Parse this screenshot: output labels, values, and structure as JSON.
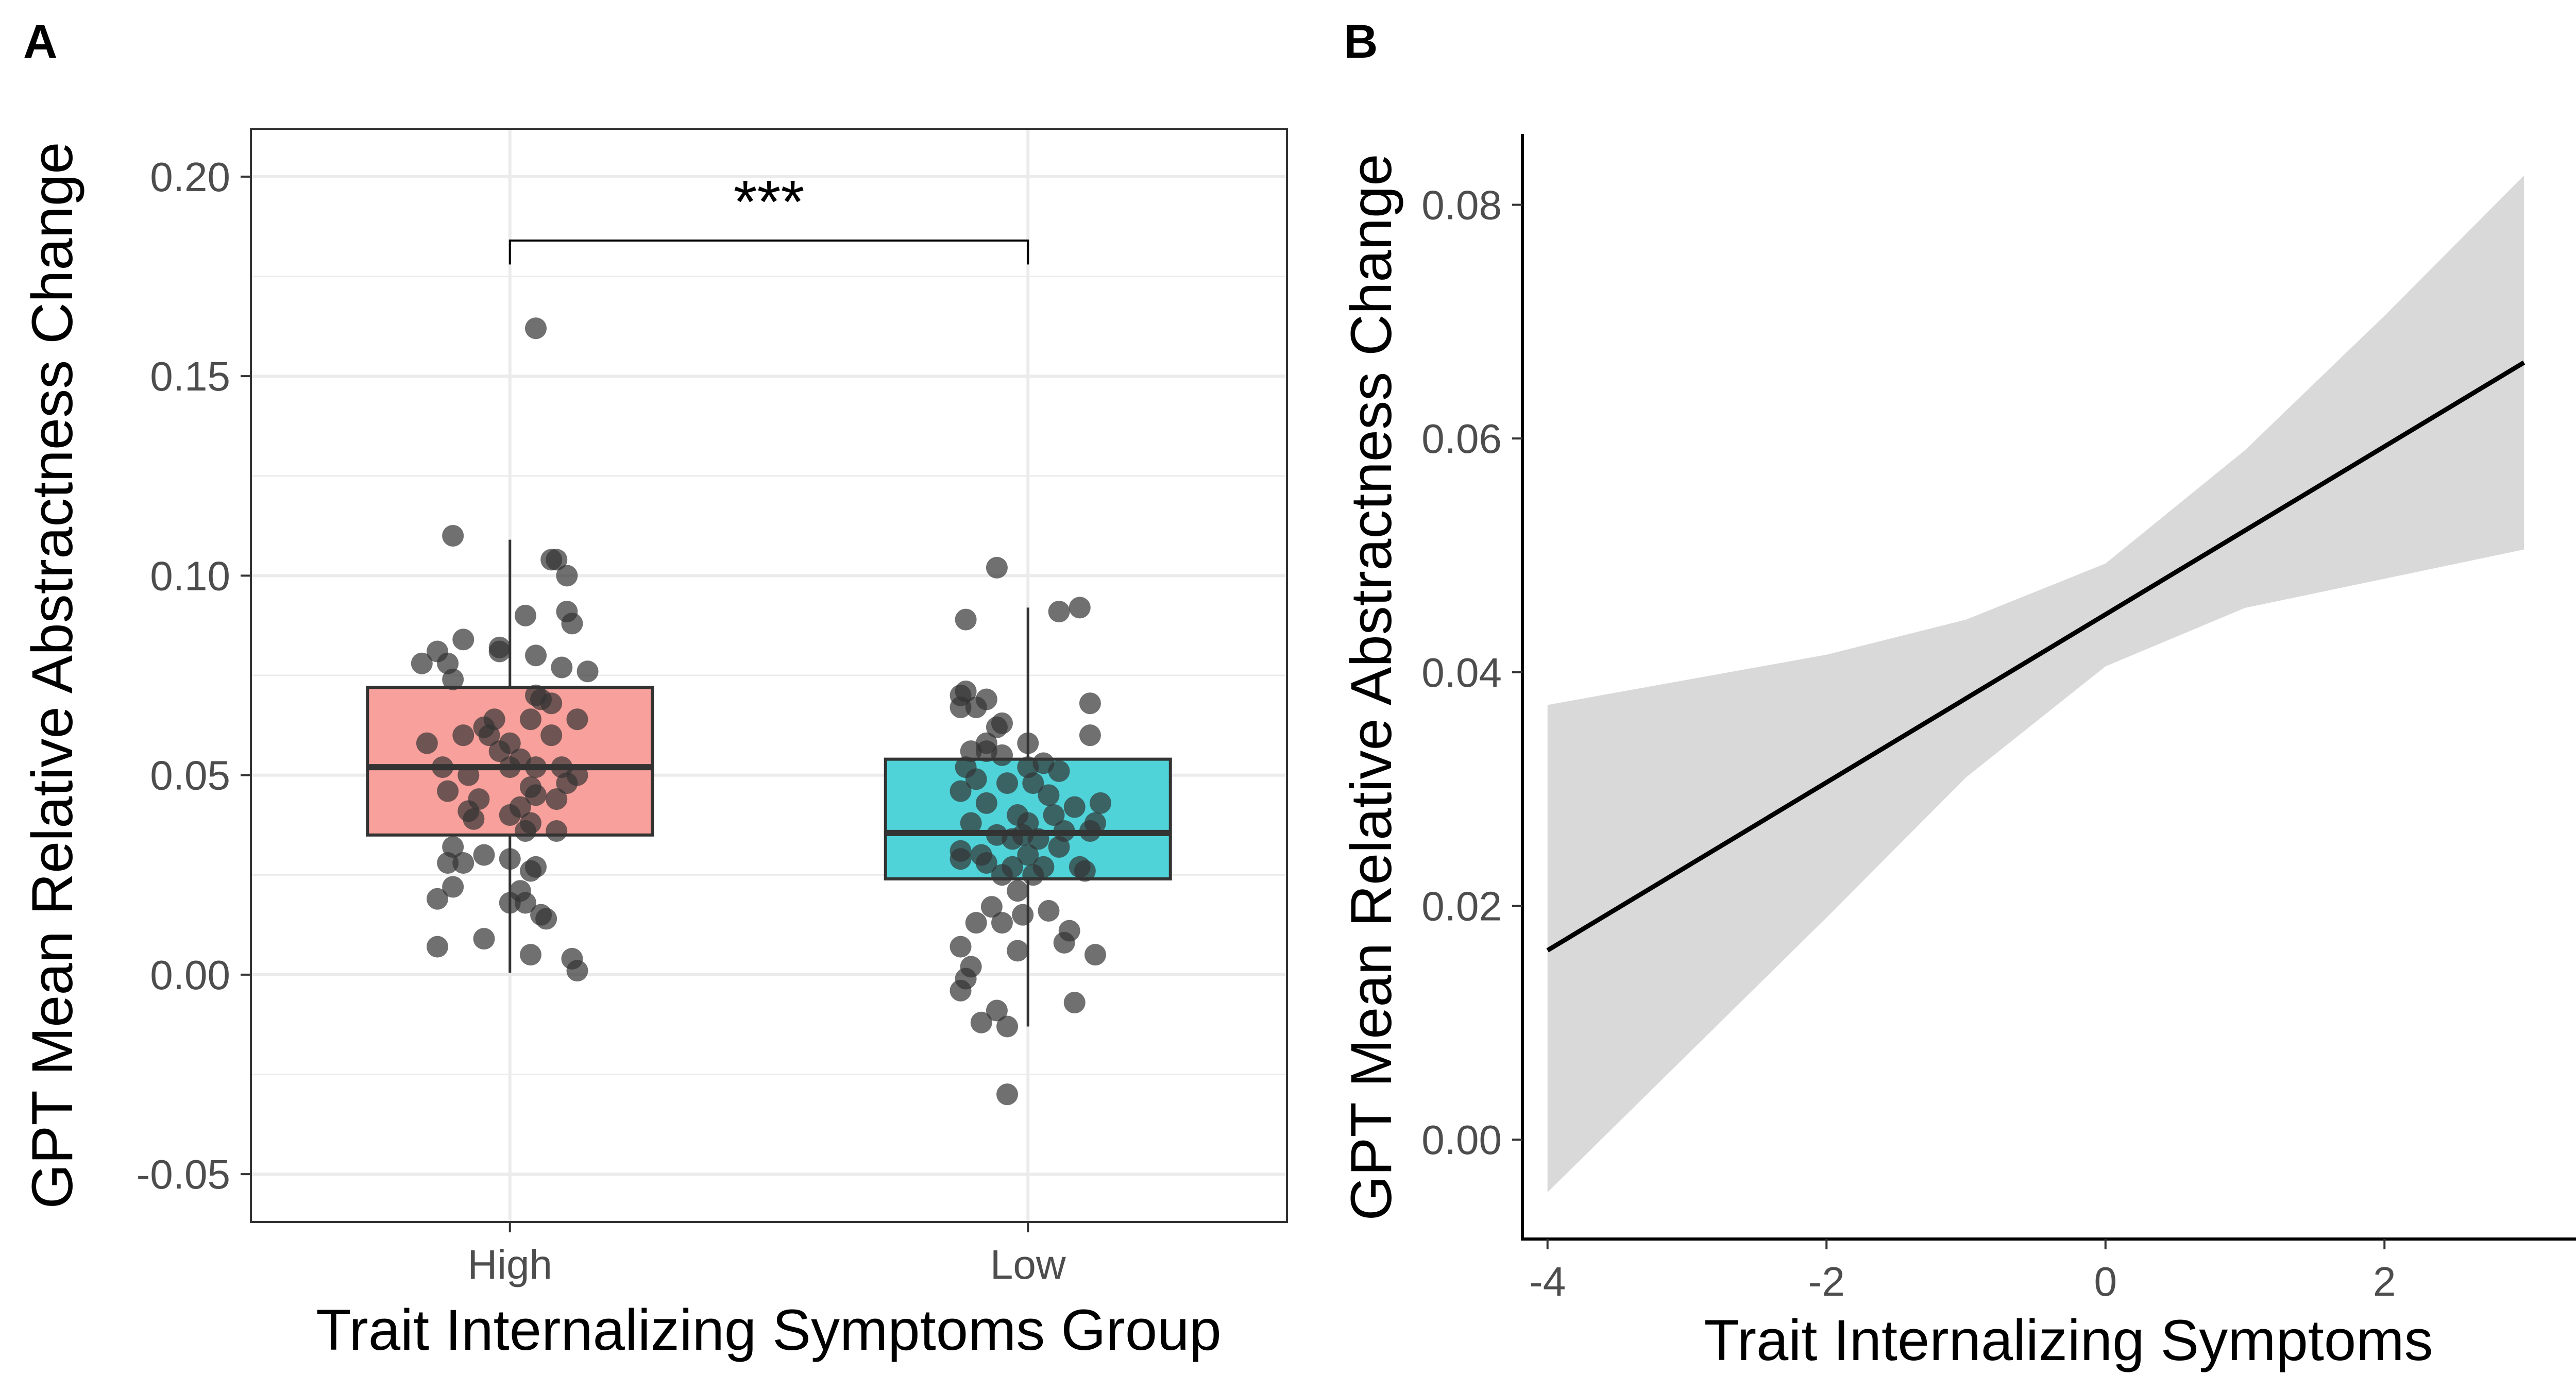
{
  "panels": {
    "a_label": "A",
    "b_label": "B"
  },
  "colors": {
    "high_fill": "#F8A09B",
    "low_fill": "#4FD3D8",
    "point": "#333333",
    "ribbon": "#D9D9D9",
    "grid": "#EBEBEB",
    "line": "#000000"
  },
  "chart_data": [
    {
      "type": "box",
      "xlabel": "Trait Internalizing Symptoms Group",
      "ylabel": "GPT Mean Relative Abstractness Change",
      "ylim": [
        -0.062,
        0.212
      ],
      "yticks": [
        -0.05,
        0.0,
        0.05,
        0.1,
        0.15,
        0.2
      ],
      "ytick_labels": [
        "-0.05",
        "0.00",
        "0.05",
        "0.10",
        "0.15",
        "0.20"
      ],
      "grid": true,
      "categories": [
        "High",
        "Low"
      ],
      "boxes": [
        {
          "category": "High",
          "fill": "#F8A09B",
          "q1": 0.035,
          "median": 0.052,
          "q3": 0.072,
          "whisker_low": 0.0005,
          "whisker_high": 0.109
        },
        {
          "category": "Low",
          "fill": "#4FD3D8",
          "q1": 0.024,
          "median": 0.0355,
          "q3": 0.054,
          "whisker_low": -0.013,
          "whisker_high": 0.092
        }
      ],
      "outliers": [
        {
          "category": "High",
          "value": 0.162
        }
      ],
      "annotation": {
        "text": "***",
        "from": "High",
        "to": "Low",
        "y": 0.184
      },
      "points": {
        "High": [
          {
            "dx": -0.11,
            "y": 0.11
          },
          {
            "dx": 0.08,
            "y": 0.104
          },
          {
            "dx": 0.09,
            "y": 0.104
          },
          {
            "dx": 0.11,
            "y": 0.1
          },
          {
            "dx": 0.11,
            "y": 0.091
          },
          {
            "dx": 0.03,
            "y": 0.09
          },
          {
            "dx": 0.12,
            "y": 0.088
          },
          {
            "dx": -0.09,
            "y": 0.084
          },
          {
            "dx": -0.02,
            "y": 0.082
          },
          {
            "dx": -0.02,
            "y": 0.081
          },
          {
            "dx": -0.14,
            "y": 0.081
          },
          {
            "dx": -0.17,
            "y": 0.078
          },
          {
            "dx": -0.12,
            "y": 0.078
          },
          {
            "dx": 0.05,
            "y": 0.08
          },
          {
            "dx": 0.15,
            "y": 0.076
          },
          {
            "dx": 0.1,
            "y": 0.077
          },
          {
            "dx": -0.11,
            "y": 0.074
          },
          {
            "dx": 0.05,
            "y": 0.07
          },
          {
            "dx": 0.06,
            "y": 0.069
          },
          {
            "dx": 0.08,
            "y": 0.068
          },
          {
            "dx": -0.03,
            "y": 0.064
          },
          {
            "dx": 0.04,
            "y": 0.064
          },
          {
            "dx": 0.13,
            "y": 0.064
          },
          {
            "dx": -0.05,
            "y": 0.062
          },
          {
            "dx": -0.09,
            "y": 0.06
          },
          {
            "dx": -0.04,
            "y": 0.06
          },
          {
            "dx": 0.0,
            "y": 0.058
          },
          {
            "dx": 0.08,
            "y": 0.06
          },
          {
            "dx": -0.16,
            "y": 0.058
          },
          {
            "dx": -0.02,
            "y": 0.056
          },
          {
            "dx": 0.02,
            "y": 0.054
          },
          {
            "dx": -0.13,
            "y": 0.052
          },
          {
            "dx": 0.0,
            "y": 0.052
          },
          {
            "dx": 0.05,
            "y": 0.052
          },
          {
            "dx": 0.1,
            "y": 0.052
          },
          {
            "dx": 0.13,
            "y": 0.05
          },
          {
            "dx": -0.08,
            "y": 0.05
          },
          {
            "dx": 0.11,
            "y": 0.048
          },
          {
            "dx": -0.12,
            "y": 0.046
          },
          {
            "dx": 0.04,
            "y": 0.047
          },
          {
            "dx": 0.05,
            "y": 0.045
          },
          {
            "dx": -0.06,
            "y": 0.044
          },
          {
            "dx": 0.09,
            "y": 0.044
          },
          {
            "dx": 0.02,
            "y": 0.042
          },
          {
            "dx": -0.08,
            "y": 0.041
          },
          {
            "dx": 0.0,
            "y": 0.04
          },
          {
            "dx": -0.07,
            "y": 0.039
          },
          {
            "dx": 0.04,
            "y": 0.038
          },
          {
            "dx": 0.09,
            "y": 0.036
          },
          {
            "dx": 0.03,
            "y": 0.036
          },
          {
            "dx": -0.11,
            "y": 0.032
          },
          {
            "dx": -0.05,
            "y": 0.03
          },
          {
            "dx": 0.0,
            "y": 0.029
          },
          {
            "dx": -0.12,
            "y": 0.028
          },
          {
            "dx": -0.09,
            "y": 0.028
          },
          {
            "dx": 0.05,
            "y": 0.027
          },
          {
            "dx": 0.04,
            "y": 0.026
          },
          {
            "dx": -0.11,
            "y": 0.022
          },
          {
            "dx": 0.02,
            "y": 0.021
          },
          {
            "dx": 0.0,
            "y": 0.018
          },
          {
            "dx": 0.03,
            "y": 0.018
          },
          {
            "dx": -0.14,
            "y": 0.019
          },
          {
            "dx": 0.06,
            "y": 0.015
          },
          {
            "dx": 0.07,
            "y": 0.014
          },
          {
            "dx": -0.05,
            "y": 0.009
          },
          {
            "dx": -0.14,
            "y": 0.007
          },
          {
            "dx": 0.04,
            "y": 0.005
          },
          {
            "dx": 0.12,
            "y": 0.004
          },
          {
            "dx": 0.13,
            "y": 0.001
          },
          {
            "dx": 0.05,
            "y": 0.162
          }
        ],
        "Low": [
          {
            "dx": -0.06,
            "y": 0.102
          },
          {
            "dx": 0.1,
            "y": 0.092
          },
          {
            "dx": 0.06,
            "y": 0.091
          },
          {
            "dx": -0.12,
            "y": 0.089
          },
          {
            "dx": -0.12,
            "y": 0.071
          },
          {
            "dx": -0.13,
            "y": 0.07
          },
          {
            "dx": -0.08,
            "y": 0.069
          },
          {
            "dx": 0.12,
            "y": 0.068
          },
          {
            "dx": -0.13,
            "y": 0.067
          },
          {
            "dx": -0.1,
            "y": 0.067
          },
          {
            "dx": -0.05,
            "y": 0.063
          },
          {
            "dx": -0.06,
            "y": 0.062
          },
          {
            "dx": 0.12,
            "y": 0.06
          },
          {
            "dx": -0.08,
            "y": 0.058
          },
          {
            "dx": 0.0,
            "y": 0.058
          },
          {
            "dx": -0.11,
            "y": 0.056
          },
          {
            "dx": -0.08,
            "y": 0.056
          },
          {
            "dx": -0.05,
            "y": 0.055
          },
          {
            "dx": 0.03,
            "y": 0.053
          },
          {
            "dx": -0.12,
            "y": 0.052
          },
          {
            "dx": 0.0,
            "y": 0.052
          },
          {
            "dx": 0.06,
            "y": 0.051
          },
          {
            "dx": -0.1,
            "y": 0.049
          },
          {
            "dx": -0.04,
            "y": 0.048
          },
          {
            "dx": 0.01,
            "y": 0.048
          },
          {
            "dx": -0.13,
            "y": 0.046
          },
          {
            "dx": 0.04,
            "y": 0.045
          },
          {
            "dx": -0.08,
            "y": 0.043
          },
          {
            "dx": 0.14,
            "y": 0.043
          },
          {
            "dx": 0.09,
            "y": 0.042
          },
          {
            "dx": -0.02,
            "y": 0.04
          },
          {
            "dx": 0.05,
            "y": 0.04
          },
          {
            "dx": -0.11,
            "y": 0.038
          },
          {
            "dx": 0.13,
            "y": 0.038
          },
          {
            "dx": 0.0,
            "y": 0.038
          },
          {
            "dx": 0.12,
            "y": 0.036
          },
          {
            "dx": 0.07,
            "y": 0.036
          },
          {
            "dx": -0.06,
            "y": 0.035
          },
          {
            "dx": -0.01,
            "y": 0.035
          },
          {
            "dx": 0.02,
            "y": 0.034
          },
          {
            "dx": -0.03,
            "y": 0.034
          },
          {
            "dx": 0.06,
            "y": 0.032
          },
          {
            "dx": -0.13,
            "y": 0.031
          },
          {
            "dx": -0.09,
            "y": 0.03
          },
          {
            "dx": 0.0,
            "y": 0.03
          },
          {
            "dx": -0.13,
            "y": 0.029
          },
          {
            "dx": -0.08,
            "y": 0.028
          },
          {
            "dx": 0.03,
            "y": 0.027
          },
          {
            "dx": 0.1,
            "y": 0.027
          },
          {
            "dx": -0.03,
            "y": 0.027
          },
          {
            "dx": 0.11,
            "y": 0.026
          },
          {
            "dx": -0.05,
            "y": 0.025
          },
          {
            "dx": 0.01,
            "y": 0.025
          },
          {
            "dx": -0.02,
            "y": 0.021
          },
          {
            "dx": -0.07,
            "y": 0.017
          },
          {
            "dx": 0.04,
            "y": 0.016
          },
          {
            "dx": -0.01,
            "y": 0.015
          },
          {
            "dx": -0.1,
            "y": 0.013
          },
          {
            "dx": -0.05,
            "y": 0.013
          },
          {
            "dx": 0.08,
            "y": 0.011
          },
          {
            "dx": 0.07,
            "y": 0.008
          },
          {
            "dx": -0.13,
            "y": 0.007
          },
          {
            "dx": -0.02,
            "y": 0.006
          },
          {
            "dx": 0.13,
            "y": 0.005
          },
          {
            "dx": -0.11,
            "y": 0.002
          },
          {
            "dx": -0.12,
            "y": -0.001
          },
          {
            "dx": -0.13,
            "y": -0.004
          },
          {
            "dx": 0.09,
            "y": -0.007
          },
          {
            "dx": -0.06,
            "y": -0.009
          },
          {
            "dx": -0.09,
            "y": -0.012
          },
          {
            "dx": -0.04,
            "y": -0.013
          },
          {
            "dx": -0.04,
            "y": -0.03
          }
        ]
      }
    },
    {
      "type": "line",
      "xlabel": "Trait Internalizing Symptoms",
      "ylabel": "GPT Mean Relative Abstractness Change",
      "xlim": [
        -4.18,
        3.65
      ],
      "ylim": [
        -0.0085,
        0.0865
      ],
      "xticks": [
        -4,
        -2,
        0,
        2
      ],
      "xtick_labels": [
        "-4",
        "-2",
        "0",
        "2"
      ],
      "yticks": [
        0.0,
        0.02,
        0.04,
        0.06,
        0.08
      ],
      "ytick_labels": [
        "0.00",
        "0.02",
        "0.04",
        "0.06",
        "0.08"
      ],
      "grid": false,
      "series": [
        {
          "x": [
            -4,
            3
          ],
          "y": [
            0.0162,
            0.0665
          ]
        }
      ],
      "ribbon": {
        "x": [
          -4,
          -2,
          -1,
          0,
          1,
          2,
          3
        ],
        "upper": [
          0.0372,
          0.0415,
          0.0445,
          0.0493,
          0.059,
          0.0705,
          0.0825
        ],
        "lower": [
          -0.0045,
          0.019,
          0.031,
          0.0405,
          0.0455,
          0.048,
          0.0505
        ]
      }
    }
  ]
}
